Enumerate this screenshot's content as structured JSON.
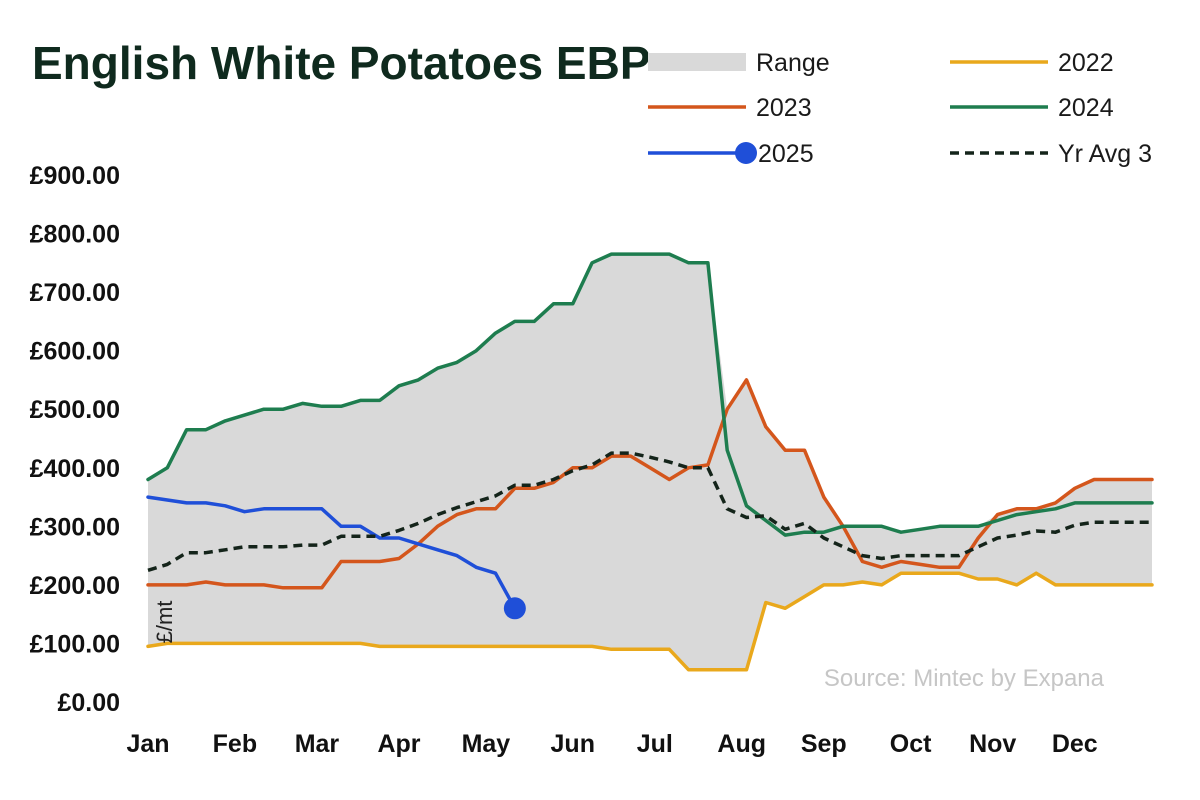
{
  "chart_data": {
    "type": "line",
    "title": "English White Potatoes EBP",
    "ylabel": "£/mt",
    "source": "Source: Mintec by Expana",
    "ylim": [
      0,
      900
    ],
    "yticks": [
      0,
      100,
      200,
      300,
      400,
      500,
      600,
      700,
      800,
      900
    ],
    "ytick_labels": [
      "£0.00",
      "£100.00",
      "£200.00",
      "£300.00",
      "£400.00",
      "£500.00",
      "£600.00",
      "£700.00",
      "£800.00",
      "£900.00"
    ],
    "xlim": [
      0,
      52
    ],
    "months": [
      "Jan",
      "Feb",
      "Mar",
      "Apr",
      "May",
      "Jun",
      "Jul",
      "Aug",
      "Sep",
      "Oct",
      "Nov",
      "Dec"
    ],
    "month_positions": [
      0,
      4.5,
      8.75,
      13,
      17.5,
      22,
      26.25,
      30.75,
      35,
      39.5,
      43.75,
      48
    ],
    "legend": [
      {
        "key": "range",
        "label": "Range"
      },
      {
        "key": "2022",
        "label": "2022"
      },
      {
        "key": "2023",
        "label": "2023"
      },
      {
        "key": "2024",
        "label": "2024"
      },
      {
        "key": "2025",
        "label": "2025"
      },
      {
        "key": "avg3",
        "label": "Yr Avg 3"
      }
    ],
    "colors": {
      "range": "#d9d9d9",
      "2022": "#e9a81c",
      "2023": "#d4561c",
      "2024": "#1e7d4f",
      "2025": "#1f4fd8",
      "avg3": "#14241a"
    },
    "series": [
      {
        "name": "2022",
        "key": "2022",
        "x": [
          0,
          1,
          2,
          3,
          4,
          5,
          6,
          7,
          8,
          9,
          10,
          11,
          12,
          13,
          14,
          15,
          16,
          17,
          18,
          19,
          20,
          21,
          22,
          23,
          24,
          25,
          26,
          27,
          28,
          29,
          30,
          31,
          32,
          33,
          34,
          35,
          36,
          37,
          38,
          39,
          40,
          41,
          42,
          43,
          44,
          45,
          46,
          47,
          48,
          49,
          50,
          51,
          52
        ],
        "values": [
          95,
          100,
          100,
          100,
          100,
          100,
          100,
          100,
          100,
          100,
          100,
          100,
          95,
          95,
          95,
          95,
          95,
          95,
          95,
          95,
          95,
          95,
          95,
          95,
          90,
          90,
          90,
          90,
          55,
          55,
          55,
          55,
          170,
          160,
          180,
          200,
          200,
          205,
          200,
          220,
          220,
          220,
          220,
          210,
          210,
          200,
          220,
          200,
          200,
          200,
          200,
          200,
          200
        ]
      },
      {
        "name": "2023",
        "key": "2023",
        "x": [
          0,
          1,
          2,
          3,
          4,
          5,
          6,
          7,
          8,
          9,
          10,
          11,
          12,
          13,
          14,
          15,
          16,
          17,
          18,
          19,
          20,
          21,
          22,
          23,
          24,
          25,
          26,
          27,
          28,
          29,
          30,
          31,
          32,
          33,
          34,
          35,
          36,
          37,
          38,
          39,
          40,
          41,
          42,
          43,
          44,
          45,
          46,
          47,
          48,
          49,
          50,
          51,
          52
        ],
        "values": [
          200,
          200,
          200,
          205,
          200,
          200,
          200,
          195,
          195,
          195,
          240,
          240,
          240,
          245,
          270,
          300,
          320,
          330,
          330,
          365,
          365,
          375,
          400,
          400,
          420,
          420,
          400,
          380,
          400,
          405,
          500,
          550,
          470,
          430,
          430,
          350,
          300,
          240,
          230,
          240,
          235,
          230,
          230,
          280,
          320,
          330,
          330,
          340,
          365,
          380,
          380,
          380,
          380
        ]
      },
      {
        "name": "2024",
        "key": "2024",
        "x": [
          0,
          1,
          2,
          3,
          4,
          5,
          6,
          7,
          8,
          9,
          10,
          11,
          12,
          13,
          14,
          15,
          16,
          17,
          18,
          19,
          20,
          21,
          22,
          23,
          24,
          25,
          26,
          27,
          28,
          29,
          30,
          31,
          32,
          33,
          34,
          35,
          36,
          37,
          38,
          39,
          40,
          41,
          42,
          43,
          44,
          45,
          46,
          47,
          48,
          49,
          50,
          51,
          52
        ],
        "values": [
          380,
          400,
          465,
          465,
          480,
          490,
          500,
          500,
          510,
          505,
          505,
          515,
          515,
          540,
          550,
          570,
          580,
          600,
          630,
          650,
          650,
          680,
          680,
          750,
          765,
          765,
          765,
          765,
          750,
          750,
          430,
          335,
          310,
          285,
          290,
          290,
          300,
          300,
          300,
          290,
          295,
          300,
          300,
          300,
          310,
          320,
          325,
          330,
          340,
          340,
          340,
          340,
          340
        ]
      },
      {
        "name": "2025",
        "key": "2025",
        "x": [
          0,
          1,
          2,
          3,
          4,
          5,
          6,
          7,
          8,
          9,
          10,
          11,
          12,
          13,
          14,
          15,
          16,
          17,
          18,
          19
        ],
        "values": [
          350,
          345,
          340,
          340,
          335,
          325,
          330,
          330,
          330,
          330,
          300,
          300,
          280,
          280,
          270,
          260,
          250,
          230,
          220,
          160
        ]
      },
      {
        "name": "Yr Avg 3",
        "key": "avg3",
        "x": [
          0,
          1,
          2,
          3,
          4,
          5,
          6,
          7,
          8,
          9,
          10,
          11,
          12,
          13,
          14,
          15,
          16,
          17,
          18,
          19,
          20,
          21,
          22,
          23,
          24,
          25,
          26,
          27,
          28,
          29,
          30,
          31,
          32,
          33,
          34,
          35,
          36,
          37,
          38,
          39,
          40,
          41,
          42,
          43,
          44,
          45,
          46,
          47,
          48,
          49,
          50,
          51,
          52
        ],
        "values": [
          225,
          235,
          255,
          255,
          260,
          265,
          265,
          265,
          268,
          268,
          283,
          283,
          283,
          293,
          305,
          320,
          332,
          342,
          352,
          370,
          370,
          380,
          395,
          405,
          425,
          425,
          418,
          410,
          400,
          400,
          330,
          315,
          318,
          295,
          305,
          280,
          265,
          250,
          245,
          250,
          250,
          250,
          250,
          265,
          280,
          285,
          292,
          290,
          302,
          307,
          307,
          307,
          307
        ]
      }
    ],
    "range": {
      "x": [
        0,
        1,
        2,
        3,
        4,
        5,
        6,
        7,
        8,
        9,
        10,
        11,
        12,
        13,
        14,
        15,
        16,
        17,
        18,
        19,
        20,
        21,
        22,
        23,
        24,
        25,
        26,
        27,
        28,
        29,
        30,
        31,
        32,
        33,
        34,
        35,
        36,
        37,
        38,
        39,
        40,
        41,
        42,
        43,
        44,
        45,
        46,
        47,
        48,
        49,
        50,
        51,
        52
      ],
      "high": [
        380,
        400,
        465,
        465,
        480,
        490,
        500,
        500,
        510,
        505,
        505,
        515,
        515,
        540,
        550,
        570,
        580,
        600,
        630,
        650,
        650,
        680,
        680,
        750,
        765,
        765,
        765,
        765,
        750,
        750,
        500,
        550,
        470,
        430,
        430,
        350,
        300,
        300,
        300,
        290,
        295,
        300,
        300,
        300,
        320,
        330,
        330,
        340,
        365,
        380,
        380,
        380,
        380
      ],
      "low": [
        95,
        100,
        100,
        100,
        100,
        100,
        100,
        100,
        100,
        100,
        100,
        100,
        95,
        95,
        95,
        95,
        95,
        95,
        95,
        95,
        95,
        95,
        95,
        95,
        90,
        90,
        90,
        90,
        55,
        55,
        55,
        55,
        170,
        160,
        180,
        200,
        200,
        205,
        200,
        220,
        220,
        220,
        220,
        210,
        210,
        200,
        220,
        200,
        200,
        200,
        200,
        200,
        200
      ]
    },
    "markers": [
      {
        "series": "2025",
        "x": 19,
        "value": 160
      }
    ]
  }
}
